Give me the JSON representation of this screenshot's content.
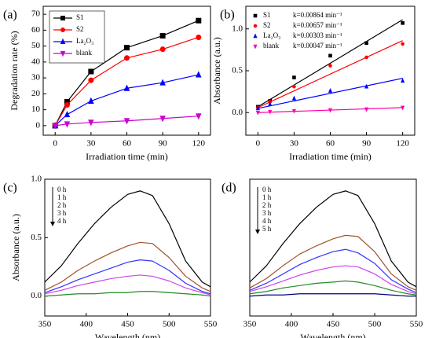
{
  "chart_data": [
    {
      "type": "line",
      "panel_label": "(a)",
      "xlabel": "Irradiation time (min)",
      "ylabel": "Degradation rate (%)",
      "x": [
        0,
        10,
        30,
        60,
        90,
        120
      ],
      "xlim": [
        -10,
        130
      ],
      "ylim": [
        -6,
        75
      ],
      "xticks": [
        0,
        30,
        60,
        90,
        120
      ],
      "yticks": [
        0,
        10,
        20,
        30,
        40,
        50,
        60,
        70
      ],
      "legend": "upper left",
      "series": [
        {
          "name": "S1",
          "color": "#000000",
          "marker": "square",
          "values": [
            0,
            15,
            34,
            49,
            56.5,
            66
          ]
        },
        {
          "name": "S2",
          "color": "#ff0000",
          "marker": "circle",
          "values": [
            0,
            13,
            28.5,
            42.5,
            48,
            55.5
          ]
        },
        {
          "name": "La₂O₃",
          "color": "#0000ff",
          "marker": "triangle",
          "values": [
            0,
            7,
            15.5,
            23.5,
            27,
            32
          ]
        },
        {
          "name": "blank",
          "color": "#cc00cc",
          "marker": "triangle-down",
          "values": [
            0,
            1,
            2,
            3,
            4.5,
            6
          ]
        }
      ]
    },
    {
      "type": "scatter",
      "panel_label": "(b)",
      "xlabel": "Irradiation time (min)",
      "ylabel": "Absorbance (a.u.)",
      "x": [
        0,
        10,
        30,
        60,
        90,
        120
      ],
      "fit_x": [
        0,
        120
      ],
      "xlim": [
        -10,
        130
      ],
      "ylim": [
        -0.27,
        1.27
      ],
      "xticks": [
        0,
        30,
        60,
        90,
        120
      ],
      "yticks": [
        {
          "value": 0,
          "label": "0.0"
        },
        0.5,
        {
          "value": 1,
          "label": "1.0"
        }
      ],
      "legend": "upper left",
      "series": [
        {
          "name": "S1",
          "k_label": "k=0.00864 min⁻¹",
          "color": "#000000",
          "marker": "square",
          "values": [
            0.07,
            0.14,
            0.42,
            0.68,
            0.83,
            1.07
          ],
          "fit": [
            0.07,
            1.11
          ]
        },
        {
          "name": "S2",
          "k_label": "k=0.00657 min⁻¹",
          "color": "#ff0000",
          "marker": "circle",
          "values": [
            0.06,
            0.13,
            0.31,
            0.56,
            0.66,
            0.82
          ],
          "fit": [
            0.06,
            0.86
          ]
        },
        {
          "name": "La₂O₃",
          "k_label": "k=0.00303 min⁻¹",
          "color": "#0000ff",
          "marker": "triangle",
          "values": [
            0.05,
            0.1,
            0.17,
            0.26,
            0.31,
            0.38
          ],
          "fit": [
            0.05,
            0.41
          ]
        },
        {
          "name": "blank",
          "k_label": "k=0.00047 min⁻¹",
          "color": "#ff00aa",
          "marker": "triangle-down",
          "values": [
            0.0,
            0.01,
            0.02,
            0.03,
            0.04,
            0.06
          ],
          "fit": [
            0.0,
            0.06
          ]
        }
      ]
    },
    {
      "type": "line",
      "panel_label": "(c)",
      "xlabel": "Wavelength (nm)",
      "ylabel": "Absorbance (a.u.)",
      "x": [
        350,
        370,
        390,
        410,
        430,
        450,
        465,
        480,
        500,
        520,
        540,
        550
      ],
      "xlim": [
        350,
        550
      ],
      "ylim": [
        -0.17,
        1.0
      ],
      "xticks": [
        350,
        400,
        450,
        500,
        550
      ],
      "yticks": [
        {
          "value": 0,
          "label": "0.0"
        },
        0.5,
        {
          "value": 1,
          "label": "1.0"
        }
      ],
      "legend": "upper left",
      "series": [
        {
          "name": "0 h",
          "color": "#000000",
          "values": [
            0.12,
            0.26,
            0.45,
            0.62,
            0.76,
            0.87,
            0.9,
            0.86,
            0.62,
            0.3,
            0.12,
            0.08
          ]
        },
        {
          "name": "1 h",
          "color": "#a0522d",
          "values": [
            0.05,
            0.12,
            0.22,
            0.3,
            0.37,
            0.43,
            0.46,
            0.45,
            0.33,
            0.17,
            0.07,
            0.04
          ]
        },
        {
          "name": "2 h",
          "color": "#3333ff",
          "values": [
            0.03,
            0.08,
            0.14,
            0.19,
            0.24,
            0.29,
            0.31,
            0.3,
            0.22,
            0.11,
            0.04,
            0.02
          ]
        },
        {
          "name": "3 h",
          "color": "#cc44ee",
          "values": [
            0.02,
            0.05,
            0.09,
            0.12,
            0.15,
            0.17,
            0.18,
            0.17,
            0.13,
            0.07,
            0.03,
            0.01
          ]
        },
        {
          "name": "4 h",
          "color": "#228b22",
          "values": [
            0.0,
            0.01,
            0.02,
            0.02,
            0.03,
            0.03,
            0.04,
            0.04,
            0.03,
            0.02,
            0.01,
            0.0
          ]
        }
      ]
    },
    {
      "type": "line",
      "panel_label": "(d)",
      "xlabel": "Wavelength (nm)",
      "x": [
        350,
        370,
        390,
        410,
        430,
        450,
        465,
        480,
        500,
        520,
        540,
        550
      ],
      "xlim": [
        350,
        550
      ],
      "ylim": [
        -0.17,
        1.0
      ],
      "xticks": [
        350,
        400,
        450,
        500,
        550
      ],
      "legend": "upper left",
      "series": [
        {
          "name": "0 h",
          "color": "#000000",
          "values": [
            0.12,
            0.26,
            0.45,
            0.62,
            0.76,
            0.87,
            0.9,
            0.86,
            0.62,
            0.3,
            0.12,
            0.08
          ]
        },
        {
          "name": "1 h",
          "color": "#a0522d",
          "values": [
            0.07,
            0.15,
            0.26,
            0.36,
            0.43,
            0.49,
            0.52,
            0.51,
            0.38,
            0.19,
            0.08,
            0.05
          ]
        },
        {
          "name": "2 h",
          "color": "#3333ff",
          "values": [
            0.05,
            0.11,
            0.19,
            0.27,
            0.33,
            0.38,
            0.4,
            0.37,
            0.28,
            0.14,
            0.06,
            0.03
          ]
        },
        {
          "name": "3 h",
          "color": "#cc44ee",
          "values": [
            0.04,
            0.08,
            0.13,
            0.18,
            0.22,
            0.25,
            0.26,
            0.25,
            0.19,
            0.1,
            0.04,
            0.02
          ]
        },
        {
          "name": "4 h",
          "color": "#228b22",
          "values": [
            0.02,
            0.04,
            0.07,
            0.09,
            0.11,
            0.12,
            0.13,
            0.12,
            0.09,
            0.05,
            0.02,
            0.01
          ]
        },
        {
          "name": "5 h",
          "color": "#000080",
          "values": [
            0.0,
            0.01,
            0.01,
            0.02,
            0.02,
            0.02,
            0.02,
            0.02,
            0.02,
            0.01,
            0.0,
            0.0
          ]
        }
      ]
    }
  ]
}
